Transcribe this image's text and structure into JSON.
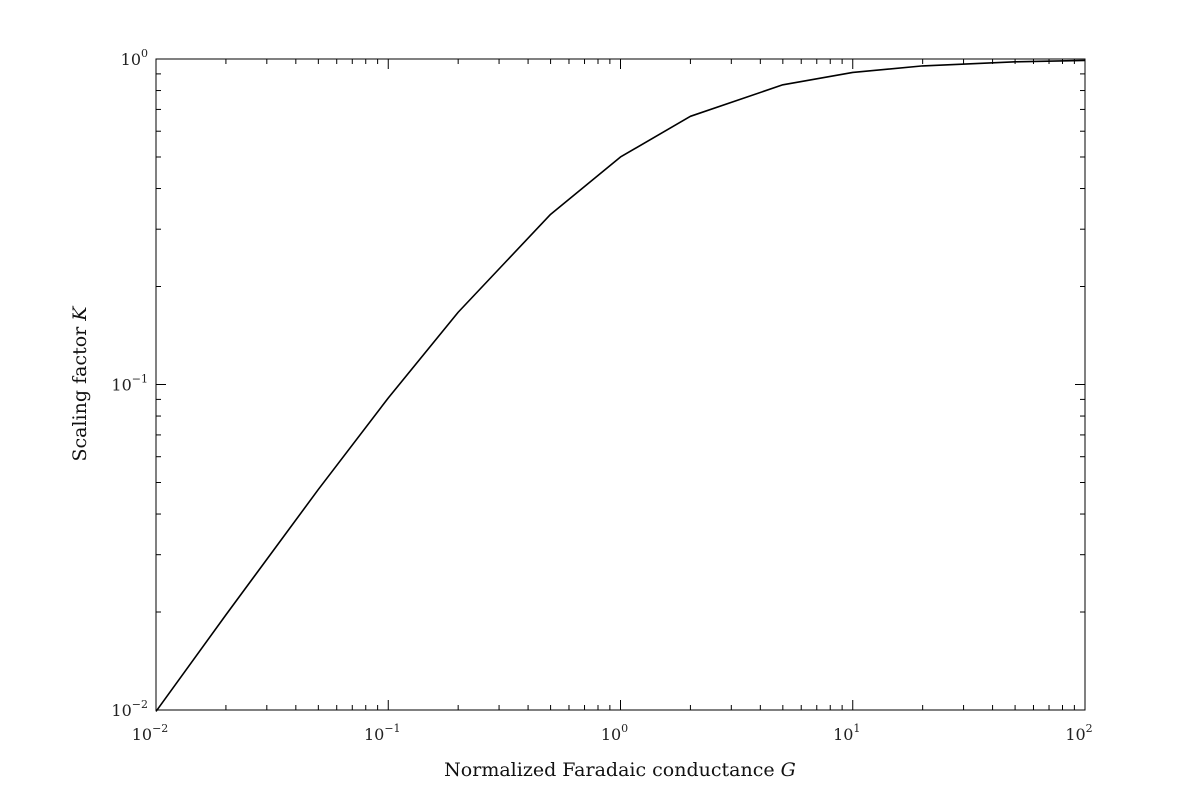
{
  "chart_data": {
    "type": "line",
    "title": "",
    "xlabel": "Normalized Faradaic conductance",
    "xlabel_symbol": "G",
    "ylabel": "Scaling factor",
    "ylabel_symbol": "K",
    "xscale": "log",
    "yscale": "log",
    "xlim": [
      0.01,
      100
    ],
    "ylim": [
      0.01,
      1
    ],
    "grid": false,
    "x_ticks": [
      {
        "base": "10",
        "exp": "−2"
      },
      {
        "base": "10",
        "exp": "−1"
      },
      {
        "base": "10",
        "exp": "0"
      },
      {
        "base": "10",
        "exp": "1"
      },
      {
        "base": "10",
        "exp": "2"
      }
    ],
    "y_ticks": [
      {
        "base": "10",
        "exp": "−2"
      },
      {
        "base": "10",
        "exp": "−1"
      },
      {
        "base": "10",
        "exp": "0"
      }
    ],
    "series": [
      {
        "color": "#000000",
        "x": [
          0.01,
          0.02,
          0.05,
          0.1,
          0.2,
          0.5,
          1,
          2,
          5,
          10,
          20,
          50,
          100
        ],
        "y": [
          0.0099,
          0.0196,
          0.0476,
          0.0909,
          0.1667,
          0.3333,
          0.5,
          0.6667,
          0.8333,
          0.9091,
          0.9524,
          0.9804,
          0.9901
        ]
      }
    ]
  }
}
